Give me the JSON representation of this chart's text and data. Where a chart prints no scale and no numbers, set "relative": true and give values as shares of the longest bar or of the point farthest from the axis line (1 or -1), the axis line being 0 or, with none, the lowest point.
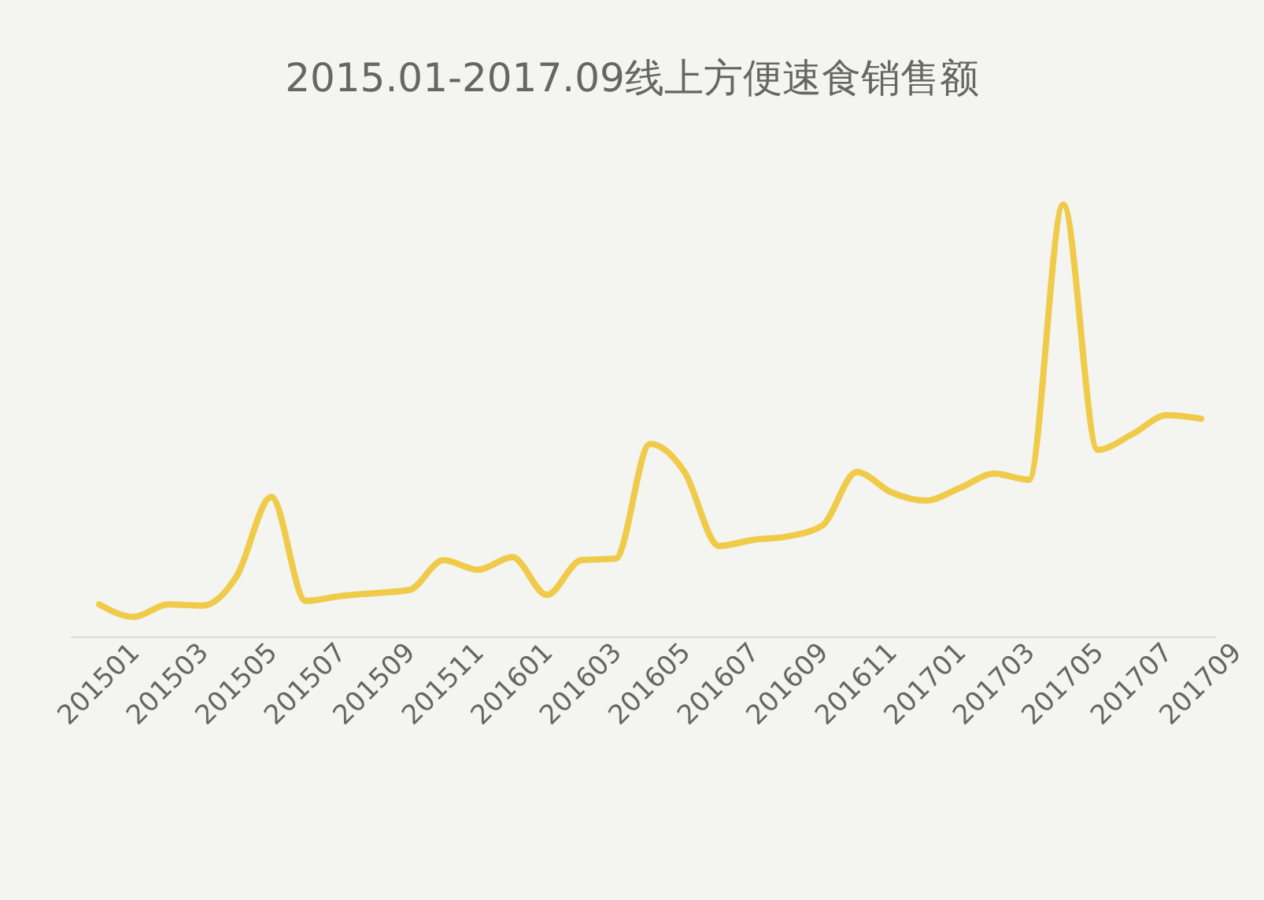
{
  "chart_data": {
    "type": "line",
    "title": "2015.01-2017.09线上方便速食销售额",
    "relative": true,
    "categories": [
      "201501",
      null,
      "201503",
      null,
      "201505",
      null,
      "201507",
      null,
      "201509",
      null,
      "201511",
      null,
      "201601",
      null,
      "201603",
      null,
      "201605",
      null,
      "201607",
      null,
      "201609",
      null,
      "201611",
      null,
      "201701",
      null,
      "201703",
      null,
      "201705",
      null,
      "201707",
      null,
      "201709"
    ],
    "series": [
      {
        "color": "#f0cb4a",
        "values": [
          0.076,
          0.047,
          0.076,
          0.073,
          0.142,
          0.324,
          0.084,
          0.095,
          0.102,
          0.109,
          0.178,
          0.156,
          0.185,
          0.098,
          0.178,
          0.182,
          0.447,
          0.382,
          0.211,
          0.225,
          0.233,
          0.258,
          0.382,
          0.335,
          0.316,
          0.345,
          0.378,
          0.364,
          1,
          0.433,
          0.469,
          0.513,
          0.505
        ]
      }
    ],
    "marker": "none",
    "line_style": "solid"
  }
}
